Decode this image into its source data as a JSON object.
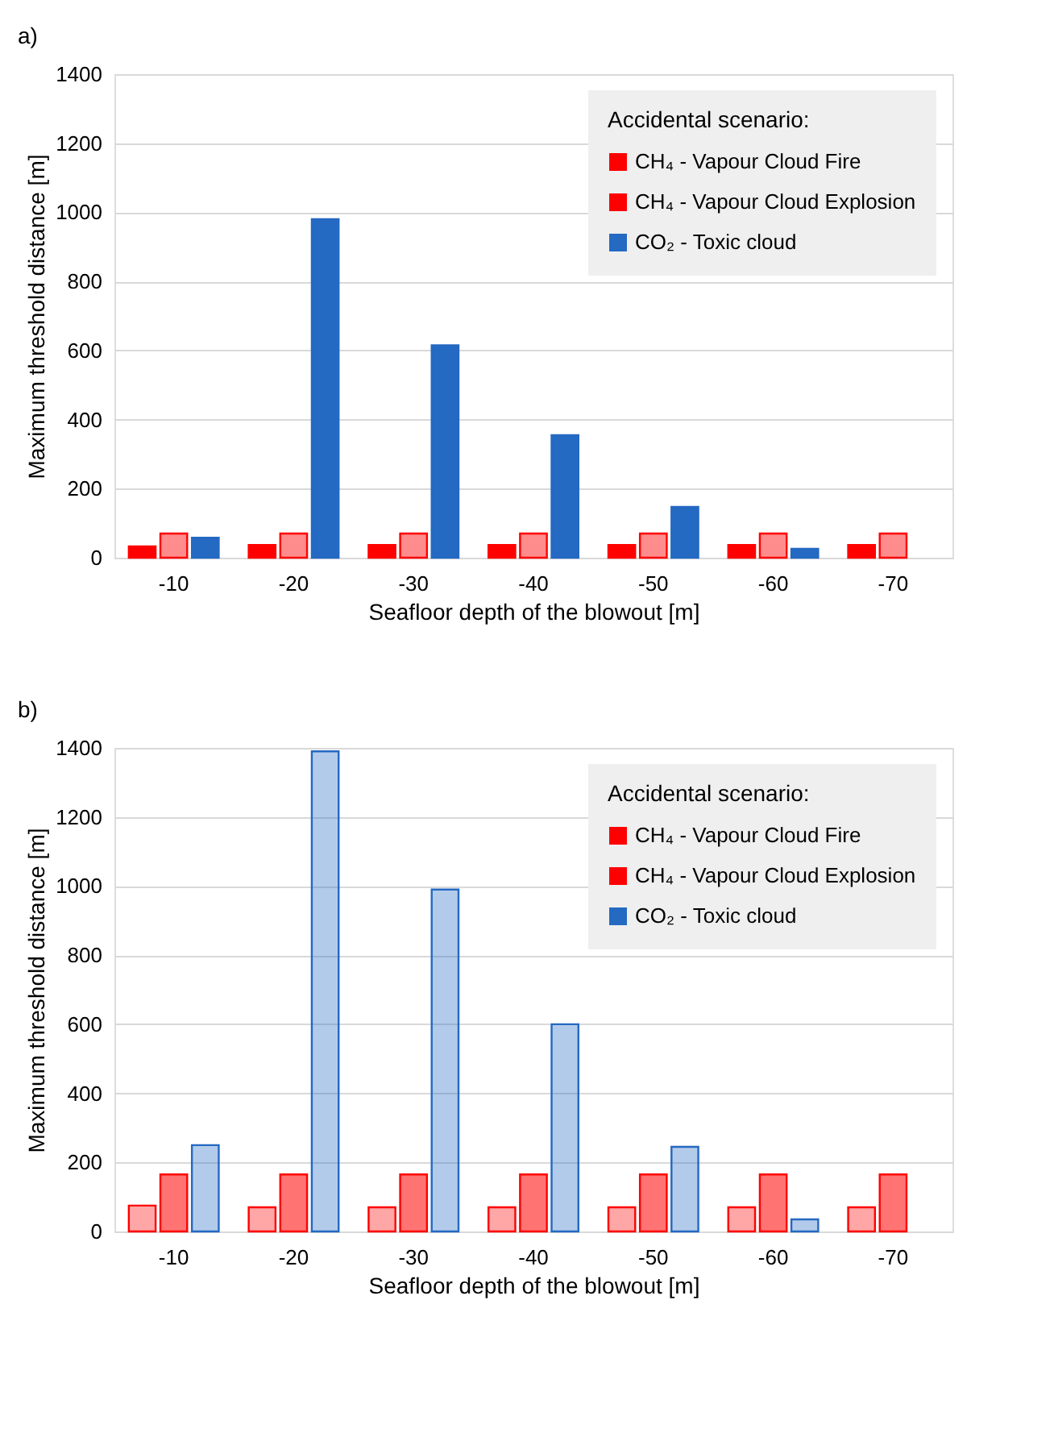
{
  "chart_data": [
    {
      "type": "bar",
      "title": "a)",
      "xlabel": "Seafloor depth of the blowout [m]",
      "ylabel": "Maximum threshold  distance [m]",
      "legend_title": "Accidental scenario:",
      "categories": [
        "-10",
        "-20",
        "-30",
        "-40",
        "-50",
        "-60",
        "-70"
      ],
      "series": [
        {
          "name": "CH₄ - Vapour Cloud Fire",
          "color": "#ff0000",
          "values": [
            33,
            37,
            37,
            37,
            37,
            37,
            37
          ]
        },
        {
          "name": "CH₄ - Vapour Cloud Explosion",
          "color": "#ff0000",
          "values": [
            70,
            70,
            70,
            70,
            70,
            70,
            70
          ]
        },
        {
          "name": "CO₂ - Toxic cloud",
          "color": "#2469c2",
          "values": [
            58,
            980,
            615,
            355,
            147,
            26,
            null
          ]
        }
      ],
      "ylim": [
        0,
        1400
      ],
      "yticks": [
        0,
        200,
        400,
        600,
        800,
        1000,
        1200,
        1400
      ],
      "grid": "y",
      "legend": "top right"
    },
    {
      "type": "bar",
      "title": "b)",
      "xlabel": "Seafloor depth of the blowout [m]",
      "ylabel": "Maximum threshold distance [m]",
      "legend_title": "Accidental scenario:",
      "categories": [
        "-10",
        "-20",
        "-30",
        "-40",
        "-50",
        "-60",
        "-70"
      ],
      "series": [
        {
          "name": "CH₄ - Vapour Cloud Fire",
          "color": "#ff0000",
          "values": [
            75,
            70,
            70,
            70,
            70,
            70,
            70
          ]
        },
        {
          "name": "CH₄ - Vapour Cloud Explosion",
          "color": "#ff0000",
          "values": [
            165,
            165,
            165,
            165,
            165,
            165,
            165
          ]
        },
        {
          "name": "CO₂ - Toxic cloud",
          "color": "#2469c2",
          "values": [
            250,
            1390,
            990,
            600,
            245,
            35,
            null
          ]
        }
      ],
      "ylim": [
        0,
        1400
      ],
      "yticks": [
        0,
        200,
        400,
        600,
        800,
        1000,
        1200,
        1400
      ],
      "grid": "y",
      "legend": "top right"
    }
  ]
}
